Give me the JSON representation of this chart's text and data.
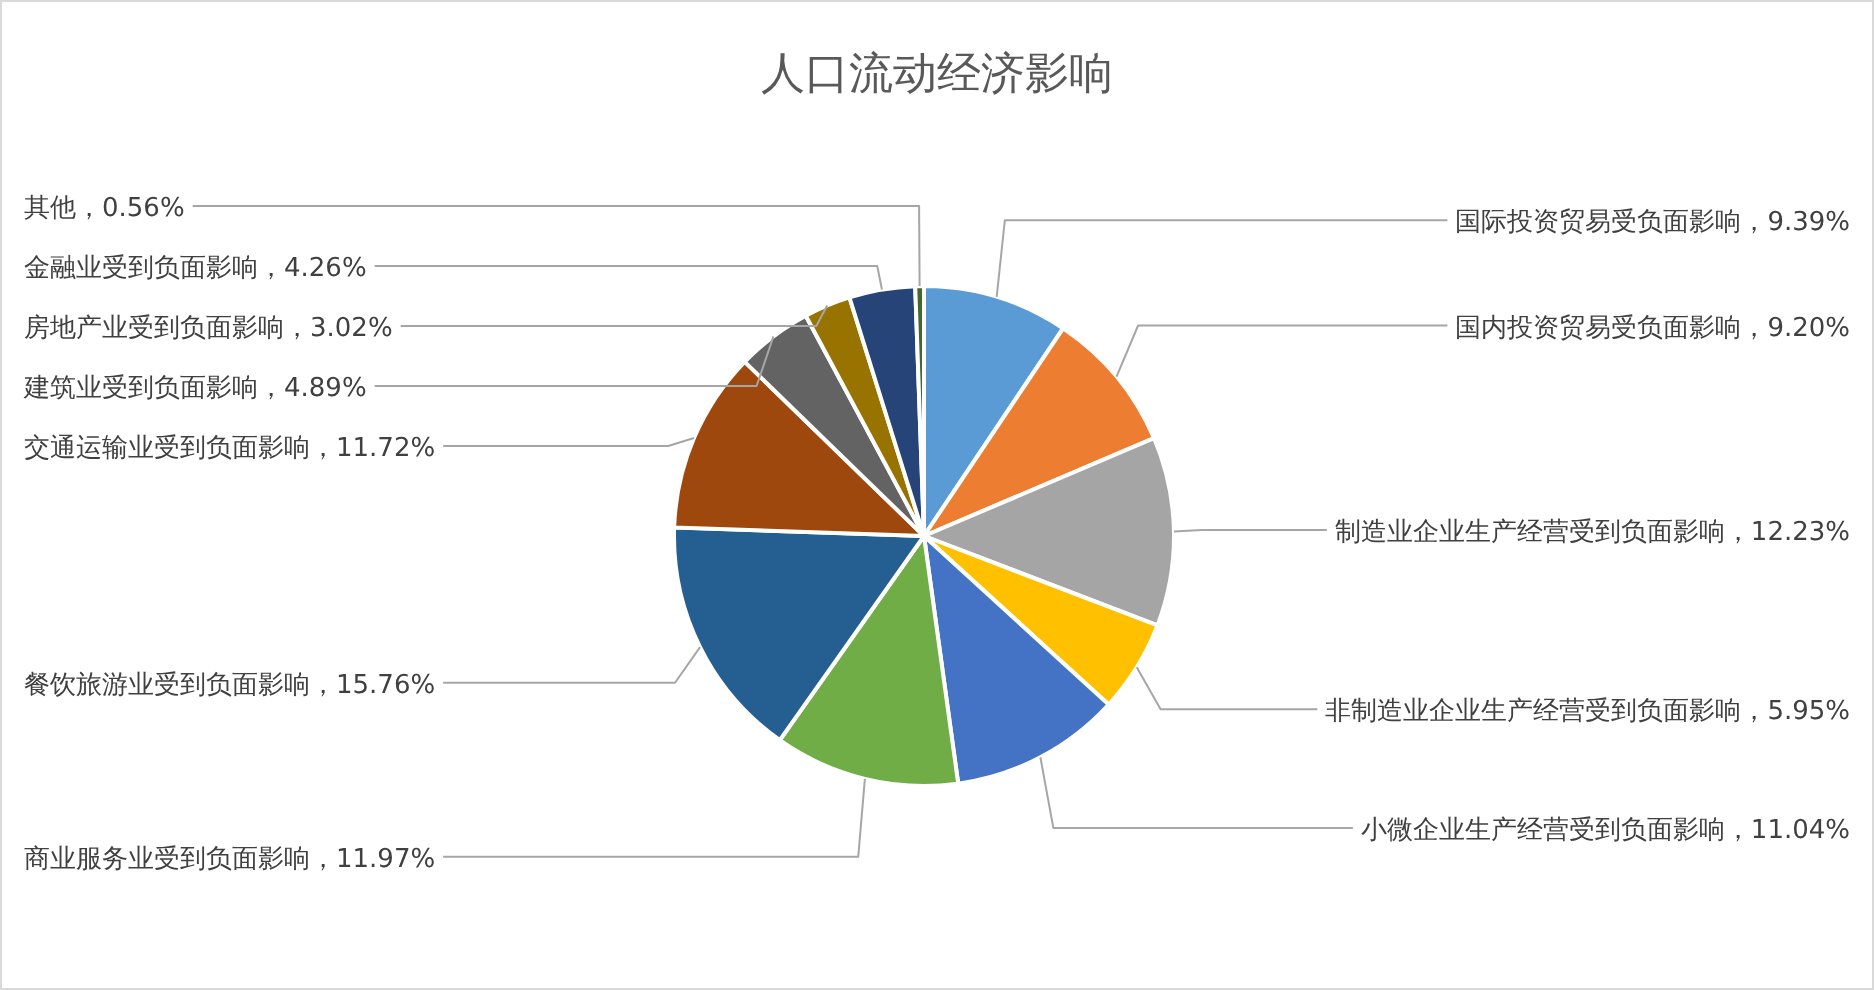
{
  "chart_data": {
    "type": "pie",
    "title": "人口流动经济影响",
    "categories": [
      "国际投资贸易受负面影响",
      "国内投资贸易受负面影响",
      "制造业企业生产经营受到负面影响",
      "非制造业企业生产经营受到负面影响",
      "小微企业生产经营受到负面影响",
      "商业服务业受到负面影响",
      "餐饮旅游业受到负面影响",
      "交通运输业受到负面影响",
      "建筑业受到负面影响",
      "房地产业受到负面影响",
      "金融业受到负面影响",
      "其他"
    ],
    "values": [
      9.39,
      9.2,
      12.23,
      5.95,
      11.04,
      11.97,
      15.76,
      11.72,
      4.89,
      3.02,
      4.26,
      0.56
    ],
    "value_labels": [
      "，9.39%",
      "，9.20%",
      "，12.23%",
      "，5.95%",
      "，11.04%",
      "，11.97%",
      "，15.76%",
      "，11.72%",
      "，4.89%",
      "，3.02%",
      "，4.26%",
      "，0.56%"
    ],
    "colors": [
      "#5b9bd5",
      "#ed7d31",
      "#a5a5a5",
      "#ffc000",
      "#4472c4",
      "#70ad47",
      "#255e91",
      "#9e480e",
      "#636363",
      "#997300",
      "#264478",
      "#43682b"
    ]
  }
}
